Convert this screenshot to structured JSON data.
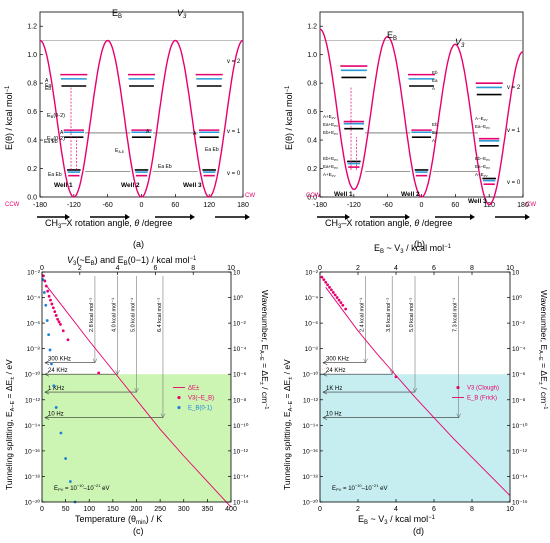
{
  "colors": {
    "pink": "#e8006e",
    "black": "#000000",
    "blue": "#1e7fd8",
    "cyan": "#2a9ad8",
    "green_region": "#ccf5b4",
    "cyan_region": "#c6eef0",
    "gray_arrow": "#7a7a7a"
  },
  "chart_data": [
    {
      "panel": "(a)",
      "type": "line",
      "xlabel": "CH3–X rotation angle, θ/degree",
      "ylabel": "E(θ) / kcal mol⁻¹",
      "xlim": [
        -180,
        180
      ],
      "ylim": [
        0,
        1.3
      ],
      "xticks": [
        "-180",
        "-120",
        "-60",
        "0",
        "60",
        "120",
        "180"
      ],
      "yticks": [
        "0.0",
        "0.2",
        "0.4",
        "0.6",
        "0.8",
        "1.0",
        "1.2"
      ],
      "potential": {
        "V3": 1.1,
        "type": "symmetric three-fold",
        "formula": "V3/2 (1 - cos 3θ)"
      },
      "barrier_labels": [
        "E_B",
        "V_3"
      ],
      "levels": [
        {
          "v": 0,
          "energies": [
            0.155,
            0.175
          ]
        },
        {
          "v": 1,
          "energies": [
            0.425,
            0.46
          ]
        },
        {
          "v": 2,
          "energies": [
            0.79,
            0.835,
            0.855
          ]
        }
      ],
      "vib_labels": [
        "v = 0",
        "v = 1",
        "v = 2"
      ],
      "level_labels_left": [
        "Ea Eb",
        "A",
        "Ea Eb",
        "A",
        "Ea",
        "Eb",
        "A",
        "Ea Eb"
      ],
      "annotations": [
        "E_B(0-2)",
        "E_B(0-1)",
        "E_A-E",
        "A",
        "Ea Eb"
      ],
      "wells": [
        "Well 1",
        "Well 2",
        "Well 3"
      ],
      "rotation": [
        "CCW",
        "CW"
      ]
    },
    {
      "panel": "(b)",
      "type": "line",
      "xlabel": "CH3–X rotation angle, θ/degree",
      "ylabel": "E(θ) / kcal mol⁻¹",
      "xlim": [
        -180,
        180
      ],
      "ylim": [
        0,
        1.3
      ],
      "xticks": [
        "-180",
        "-120",
        "-60",
        "0",
        "60",
        "120",
        "180"
      ],
      "yticks": [
        "0.0",
        "0.2",
        "0.4",
        "0.6",
        "0.8",
        "1.0",
        "1.2"
      ],
      "potential": {
        "V3": 1.1,
        "tilt": "asymmetric (parity-violating)"
      },
      "barrier_labels": [
        "E_B",
        "V_3"
      ],
      "level_labels_left": [
        "A+E_PV",
        "Ea+E_PV",
        "Eb+E_PV",
        "Eb+E_PV",
        "Ea+E_PV",
        "A+E_PV"
      ],
      "level_labels_mid": [
        "Eb",
        "Ea",
        "A",
        "Eb",
        "Ea",
        "A"
      ],
      "level_labels_right": [
        "A−E_PV",
        "Ea−E_PV",
        "Eb−E_PV",
        "Eb−E_PV",
        "Ea−E_PV",
        "A−E_PV"
      ],
      "vib_labels": [
        "v = 2",
        "v = 1",
        "v = 0"
      ],
      "wells": [
        "Well 1",
        "Well 2",
        "Well 3"
      ],
      "rotation": [
        "CCW",
        "CW"
      ]
    },
    {
      "panel": "(c)",
      "type": "scatter",
      "title": "V3 (~E_B) and E_B(0-1) / kcal mol⁻¹",
      "xlabel": "Temperature (θmin) / K",
      "ylabel_left": "Tunneling splitting, E_A-E = ΔE± / eV",
      "ylabel_right": "Wavenumber, E_A-E = ΔE± / cm⁻¹",
      "xlim": [
        0,
        400
      ],
      "top_xlim": [
        0,
        10
      ],
      "ylim_log10": [
        -20,
        -2
      ],
      "xticks": [
        "0",
        "50",
        "100",
        "150",
        "200",
        "250",
        "300",
        "350",
        "400"
      ],
      "top_xticks": [
        "0",
        "2",
        "4",
        "6",
        "8",
        "10"
      ],
      "yticks_left": [
        "10⁻²",
        "10⁻⁴",
        "10⁻⁶",
        "10⁻⁸",
        "10⁻¹⁰",
        "10⁻¹²",
        "10⁻¹⁴",
        "10⁻¹⁶",
        "10⁻¹⁸",
        "10⁻²⁰"
      ],
      "yticks_right": [
        "10",
        "10⁰",
        "10⁻²",
        "10⁻⁴",
        "10⁻⁶",
        "10⁻⁸",
        "10⁻¹⁰",
        "10⁻¹²",
        "10⁻¹⁴",
        "10⁻¹⁶"
      ],
      "region": {
        "label": "E_PV = 10⁻¹⁰–10⁻²¹ eV",
        "y_top_log10": -10
      },
      "freq_labels": [
        "300 KHz",
        "24 KHz",
        "1 KHz",
        "10 Hz"
      ],
      "freq_log10": [
        -9.1,
        -10.0,
        -11.4,
        -13.4
      ],
      "energy_labels": [
        "2.8 kcal mol⁻¹",
        "4.0 kcal mol⁻¹",
        "5.0 kcal mol⁻¹",
        "6.4 kcal mol⁻¹"
      ],
      "energy_x": [
        2.8,
        4.0,
        5.0,
        6.4
      ],
      "series": [
        {
          "name": "ΔE±",
          "style": "line",
          "x": [
            8,
            50,
            100,
            150,
            200,
            250,
            300,
            350,
            400
          ],
          "log10y": [
            -3.0,
            -5.0,
            -7.4,
            -9.7,
            -12.0,
            -14.3,
            -16.4,
            -18.4,
            -20.4
          ]
        },
        {
          "name": "V3(~E_B)",
          "style": "points",
          "x": [
            3,
            6,
            9,
            12,
            15,
            18,
            21,
            24,
            27,
            30,
            33,
            36,
            39,
            45,
            55,
            120
          ],
          "log10y": [
            -2.3,
            -2.7,
            -3.1,
            -3.5,
            -3.9,
            -4.2,
            -4.5,
            -4.8,
            -5.1,
            -5.4,
            -5.7,
            -5.9,
            -6.1,
            -6.6,
            -7.3,
            -9.9
          ]
        },
        {
          "name": "E_B(0-1)",
          "style": "points",
          "x": [
            2,
            5,
            8,
            11,
            14,
            17,
            20,
            25,
            30,
            40,
            50,
            60,
            70
          ],
          "log10y": [
            -2.6,
            -3.6,
            -4.6,
            -5.8,
            -6.9,
            -8.1,
            -9.2,
            -10.9,
            -12.6,
            -14.6,
            -16.6,
            -18.4,
            -20.0
          ]
        }
      ]
    },
    {
      "panel": "(d)",
      "type": "scatter",
      "title": "E_B ~ V3 / kcal mol⁻¹",
      "xlabel": "E_B ~ V3 / kcal mol⁻¹",
      "ylabel_left": "Tunneling splitting, E_A-E = ΔE± / eV",
      "ylabel_right": "Wavenumber, E_A-E = ΔE± / cm⁻¹",
      "xlim": [
        0,
        10
      ],
      "ylim_log10": [
        -20,
        -2
      ],
      "xticks": [
        "0",
        "2",
        "4",
        "6",
        "8",
        "10"
      ],
      "yticks_left": [
        "10⁻²",
        "10⁻⁴",
        "10⁻⁶",
        "10⁻⁸",
        "10⁻¹⁰",
        "10⁻¹²",
        "10⁻¹⁴",
        "10⁻¹⁶",
        "10⁻¹⁸",
        "10⁻²⁰"
      ],
      "yticks_right": [
        "10",
        "10⁰",
        "10⁻²",
        "10⁻⁴",
        "10⁻⁶",
        "10⁻⁸",
        "10⁻¹⁰",
        "10⁻¹²",
        "10⁻¹⁴",
        "10⁻¹⁶"
      ],
      "region": {
        "label": "E_PV = 10⁻¹⁰–10⁻²¹ eV",
        "y_top_log10": -10
      },
      "freq_labels": [
        "300 KHz",
        "24 KHz",
        "1K Hz",
        "10 Hz"
      ],
      "freq_log10": [
        -9.1,
        -10.0,
        -11.4,
        -13.4
      ],
      "energy_labels": [
        "2.4 kcal mol⁻¹",
        "3.8 kcal mol⁻¹",
        "5.0 kcal mol⁻¹",
        "7.3 kcal mol⁻¹"
      ],
      "energy_x": [
        2.4,
        3.8,
        5.0,
        7.3
      ],
      "series": [
        {
          "name": "V3 (Clough)",
          "style": "points",
          "x": [
            0.1,
            0.2,
            0.3,
            0.4,
            0.5,
            0.6,
            0.7,
            0.8,
            0.9,
            1.0,
            1.1,
            1.2,
            1.35,
            4.0
          ],
          "log10y": [
            -2.4,
            -2.6,
            -2.8,
            -3.0,
            -3.2,
            -3.4,
            -3.6,
            -3.8,
            -4.0,
            -4.2,
            -4.4,
            -4.6,
            -4.9,
            -10.2
          ]
        },
        {
          "name": "E_B (Frick)",
          "style": "line",
          "x": [
            0.3,
            1,
            2,
            3,
            4,
            5,
            6,
            7,
            8,
            9,
            10
          ],
          "log10y": [
            -3.2,
            -4.6,
            -6.6,
            -8.4,
            -10.1,
            -11.8,
            -13.4,
            -15.0,
            -16.5,
            -18.0,
            -19.5
          ]
        }
      ]
    }
  ],
  "captions": {
    "a": "(a)",
    "b": "(b)",
    "c": "(c)",
    "d": "(d)"
  },
  "text": {
    "well1": "Well 1",
    "well2": "Well 2",
    "well3": "Well 3",
    "ccw": "CCW",
    "cw": "CW",
    "eb": "E",
    "eb_sub": "B",
    "v3": "V",
    "v3_sub": "3",
    "v0": "v = 0",
    "v1": "v = 1",
    "v2": "v = 2",
    "x_prefix": "CH",
    "x_sub": "3",
    "x_mid": "–X rotation angle, ",
    "x_theta": "θ",
    "x_suffix": " /degree",
    "y_a": "E(θ) / kcal mol",
    "epv_prefix": "E",
    "epv_sub": "PV",
    "epv_val": " = 10",
    "lbl_ea_eb": "Ea Eb",
    "lbl_a": "A",
    "lbl_ea": "Ea",
    "lbl_eb": "Eb",
    "lbl_eb02": "E",
    "lbl_eb02_sub": "B",
    "lbl_eb02_tail": "(0-2)",
    "lbl_eb01_tail": "(0-1)",
    "lbl_eae": "E",
    "lbl_eae_sub": "A-E",
    "lbl_a_epv": "A+E",
    "lbl_ea_epv": "Ea+E",
    "lbl_eb_epv": "Eb+E",
    "lbl_pv": "PV",
    "lbl_am_epv": "A−E",
    "lbl_eam_epv": "Ea−E",
    "lbl_ebm_epv": "Eb−E",
    "lbl_deltaE": "ΔE",
    "c_top": "V",
    "c_top2": "(~E",
    "c_top3": ") and E",
    "c_top4": "(0−1) / kcal mol",
    "c_xlabel": "Temperature (θ",
    "c_xlabel2": "min",
    "c_xlabel3": ") / K",
    "ylab_split": "Tunneling splitting, E",
    "ylab_split2": " = ΔE",
    "ylab_split3": " / eV",
    "ylab_wave": "Wavenumber, E",
    "ylab_wave3": " / cm",
    "leg_v3": "V",
    "leg_v3b": "(~E",
    "leg_v3c": ")",
    "leg_eb": "E",
    "leg_eb2": "(0-1)",
    "d_top": "E",
    "d_top2": " ~ V",
    "d_top3": " / kcal mol",
    "d_xlabel": "E",
    "d_xlabel2": " ~ V",
    "d_xlabel3": " / kcal mol",
    "leg_clough": "(Clough)",
    "leg_frick": "(Frick)"
  }
}
